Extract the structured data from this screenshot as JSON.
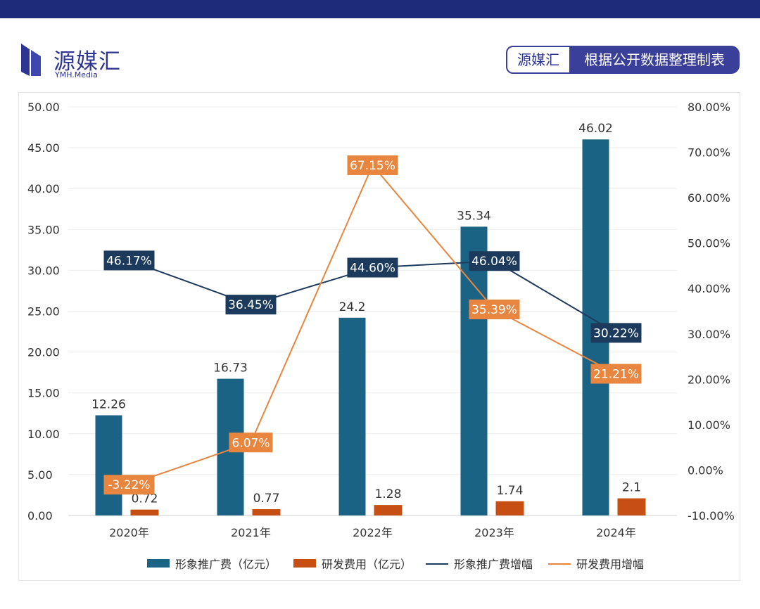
{
  "brand": {
    "name_cn": "源媒汇",
    "name_en": "YMH.Media"
  },
  "source": {
    "left": "源媒汇",
    "right": "根据公开数据整理制表"
  },
  "colors": {
    "bar1": "#1b6384",
    "bar2": "#c84f14",
    "line1": "#1f3a5f",
    "line2": "#e8853e",
    "tag1": "#1b3a5c",
    "tag2": "#e8853e"
  },
  "chart_data": {
    "type": "bar",
    "categories": [
      "2020年",
      "2021年",
      "2022年",
      "2023年",
      "2024年"
    ],
    "y_left": {
      "min": 0,
      "max": 50,
      "step": 5,
      "ticks": [
        "0.00",
        "5.00",
        "10.00",
        "15.00",
        "20.00",
        "25.00",
        "30.00",
        "35.00",
        "40.00",
        "45.00",
        "50.00"
      ]
    },
    "y_right": {
      "min": -10,
      "max": 80,
      "step": 10,
      "ticks": [
        "-10.00%",
        "0.00%",
        "10.00%",
        "20.00%",
        "30.00%",
        "40.00%",
        "50.00%",
        "60.00%",
        "70.00%",
        "80.00%"
      ]
    },
    "series": [
      {
        "name": "形象推广费（亿元）",
        "type": "bar",
        "axis": "left",
        "values": [
          12.26,
          16.73,
          24.2,
          35.34,
          46.02
        ],
        "labels": [
          "12.26",
          "16.73",
          "24.2",
          "35.34",
          "46.02"
        ]
      },
      {
        "name": "研发费用（亿元）",
        "type": "bar",
        "axis": "left",
        "values": [
          0.72,
          0.77,
          1.28,
          1.74,
          2.1
        ],
        "labels": [
          "0.72",
          "0.77",
          "1.28",
          "1.74",
          "2.1"
        ]
      },
      {
        "name": "形象推广费增幅",
        "type": "line",
        "axis": "right",
        "values": [
          46.17,
          36.45,
          44.6,
          46.04,
          30.22
        ],
        "labels": [
          "46.17%",
          "36.45%",
          "44.60%",
          "46.04%",
          "30.22%"
        ]
      },
      {
        "name": "研发费用增幅",
        "type": "line",
        "axis": "right",
        "values": [
          -3.22,
          6.07,
          67.15,
          35.39,
          21.21
        ],
        "labels": [
          "-3.22%",
          "6.07%",
          "67.15%",
          "35.39%",
          "21.21%"
        ]
      }
    ],
    "legend": "bottom",
    "grid": true
  }
}
